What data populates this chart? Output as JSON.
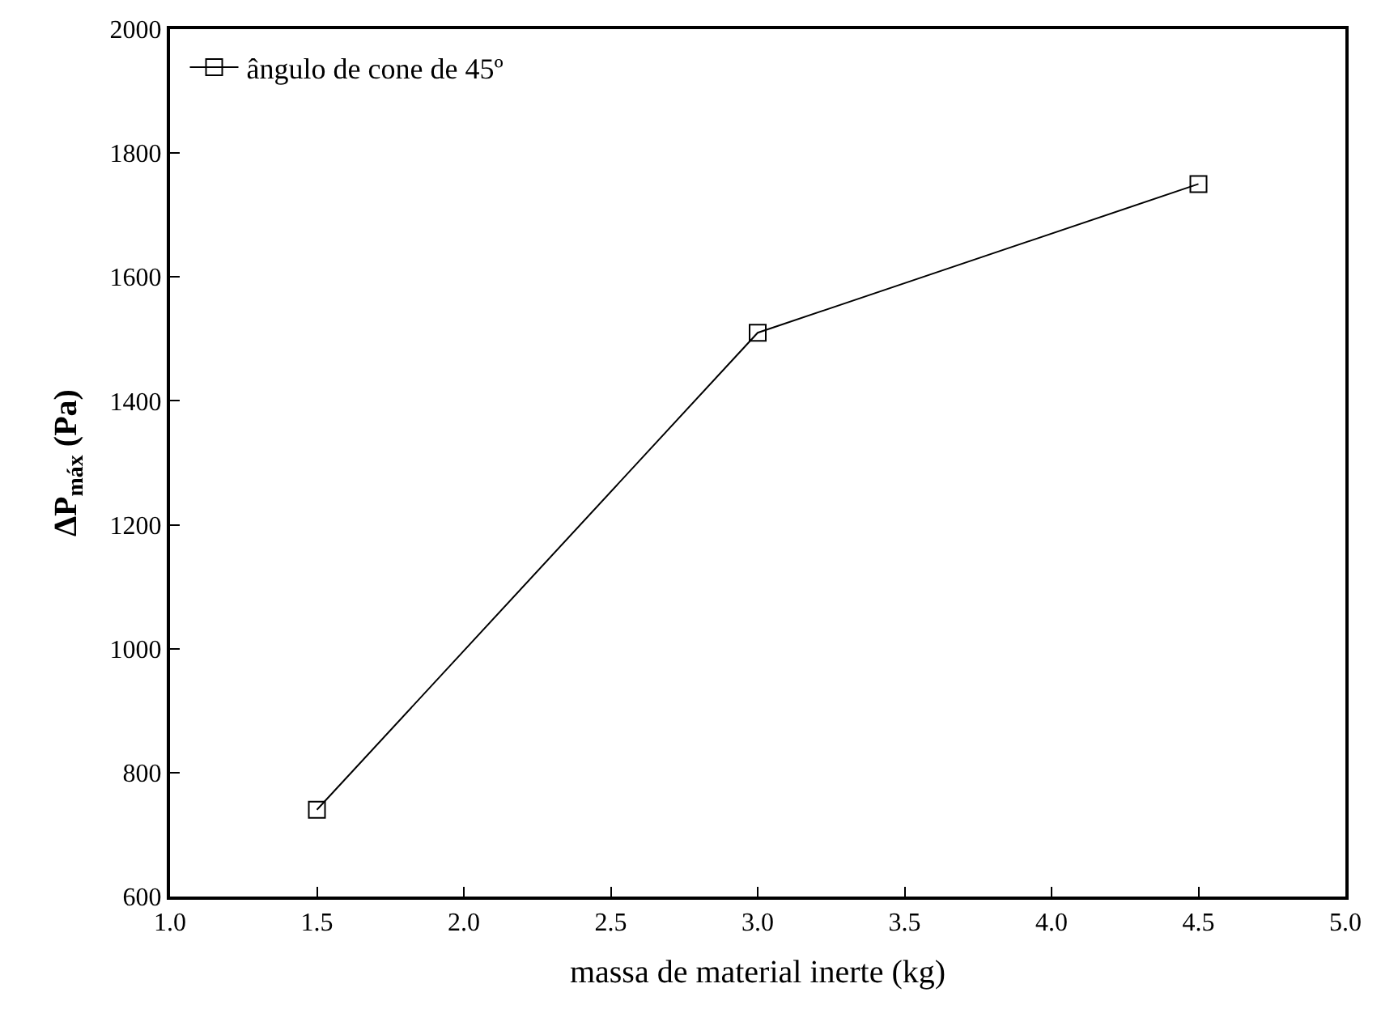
{
  "chart_data": {
    "type": "line",
    "xlabel": "massa de material inerte (kg)",
    "ylabel": "ΔP$_{máx}$ (Pa)",
    "x": [
      1.5,
      3.0,
      4.5
    ],
    "series": [
      {
        "name": "ângulo de cone de 45º",
        "color": "#000000",
        "values": [
          740,
          1510,
          1750
        ]
      }
    ],
    "xlim": [
      1.0,
      5.0
    ],
    "xticks": [
      {
        "value": 1.0,
        "label": "1.0"
      },
      {
        "value": 1.5,
        "label": "1.5"
      },
      {
        "value": 2.0,
        "label": "2.0"
      },
      {
        "value": 2.5,
        "label": "2.5"
      },
      {
        "value": 3.0,
        "label": "3.0"
      },
      {
        "value": 3.5,
        "label": "3.5"
      },
      {
        "value": 4.0,
        "label": "4.0"
      },
      {
        "value": 4.5,
        "label": "4.5"
      },
      {
        "value": 5.0,
        "label": "5.0"
      }
    ],
    "ylim": [
      600,
      2000
    ],
    "yticks": [
      600,
      800,
      1000,
      1200,
      1400,
      1600,
      1800,
      2000
    ],
    "marker": "square",
    "line_style": "solid",
    "legend": "top left"
  }
}
